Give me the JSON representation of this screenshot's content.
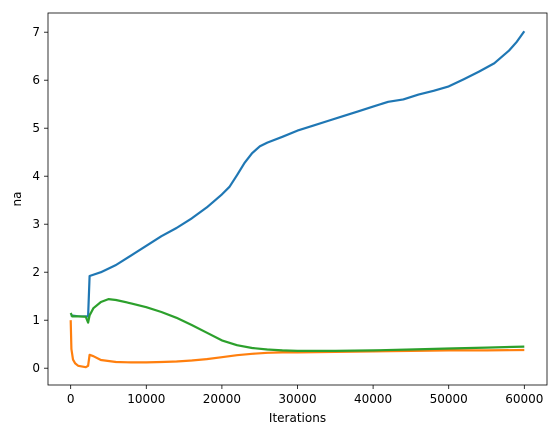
{
  "chart_data": {
    "type": "line",
    "title": "",
    "xlabel": "Iterations",
    "ylabel": "na",
    "xlim": [
      -3000,
      63000
    ],
    "ylim": [
      -0.35,
      7.4
    ],
    "xticks": [
      0,
      10000,
      20000,
      30000,
      40000,
      50000,
      60000
    ],
    "yticks": [
      0,
      1,
      2,
      3,
      4,
      5,
      6,
      7
    ],
    "grid": false,
    "series": [
      {
        "color": "#1f77b4",
        "x": [
          0,
          1000,
          2000,
          2300,
          2500,
          4000,
          6000,
          8000,
          10000,
          12000,
          14000,
          16000,
          18000,
          20000,
          21000,
          22000,
          23000,
          24000,
          25000,
          26000,
          28000,
          30000,
          32000,
          34000,
          36000,
          38000,
          40000,
          42000,
          44000,
          46000,
          48000,
          50000,
          52000,
          54000,
          56000,
          58000,
          59000,
          60000
        ],
        "y": [
          1.1,
          1.08,
          1.08,
          1.08,
          1.92,
          2.0,
          2.15,
          2.35,
          2.55,
          2.75,
          2.92,
          3.12,
          3.35,
          3.62,
          3.78,
          4.02,
          4.28,
          4.48,
          4.62,
          4.7,
          4.82,
          4.95,
          5.05,
          5.15,
          5.25,
          5.35,
          5.45,
          5.55,
          5.6,
          5.7,
          5.78,
          5.87,
          6.02,
          6.18,
          6.35,
          6.62,
          6.8,
          7.02
        ]
      },
      {
        "color": "#ff7f0e",
        "x": [
          0,
          100,
          300,
          600,
          1000,
          2000,
          2300,
          2500,
          3000,
          4000,
          6000,
          8000,
          10000,
          12000,
          14000,
          16000,
          18000,
          20000,
          22000,
          24000,
          26000,
          28000,
          30000,
          35000,
          40000,
          45000,
          50000,
          55000,
          60000
        ],
        "y": [
          1.0,
          0.4,
          0.18,
          0.1,
          0.05,
          0.02,
          0.05,
          0.28,
          0.25,
          0.17,
          0.13,
          0.12,
          0.12,
          0.13,
          0.14,
          0.16,
          0.19,
          0.23,
          0.27,
          0.3,
          0.32,
          0.33,
          0.33,
          0.34,
          0.35,
          0.36,
          0.37,
          0.37,
          0.38
        ]
      },
      {
        "color": "#2ca02c",
        "x": [
          0,
          200,
          1000,
          2000,
          2300,
          2500,
          3000,
          4000,
          5000,
          6000,
          8000,
          10000,
          12000,
          14000,
          16000,
          18000,
          20000,
          22000,
          24000,
          26000,
          28000,
          30000,
          35000,
          40000,
          45000,
          50000,
          55000,
          60000
        ],
        "y": [
          1.15,
          1.08,
          1.08,
          1.07,
          0.95,
          1.1,
          1.25,
          1.38,
          1.44,
          1.42,
          1.35,
          1.27,
          1.17,
          1.05,
          0.9,
          0.74,
          0.58,
          0.48,
          0.42,
          0.39,
          0.37,
          0.36,
          0.36,
          0.37,
          0.39,
          0.41,
          0.43,
          0.45
        ]
      }
    ]
  }
}
